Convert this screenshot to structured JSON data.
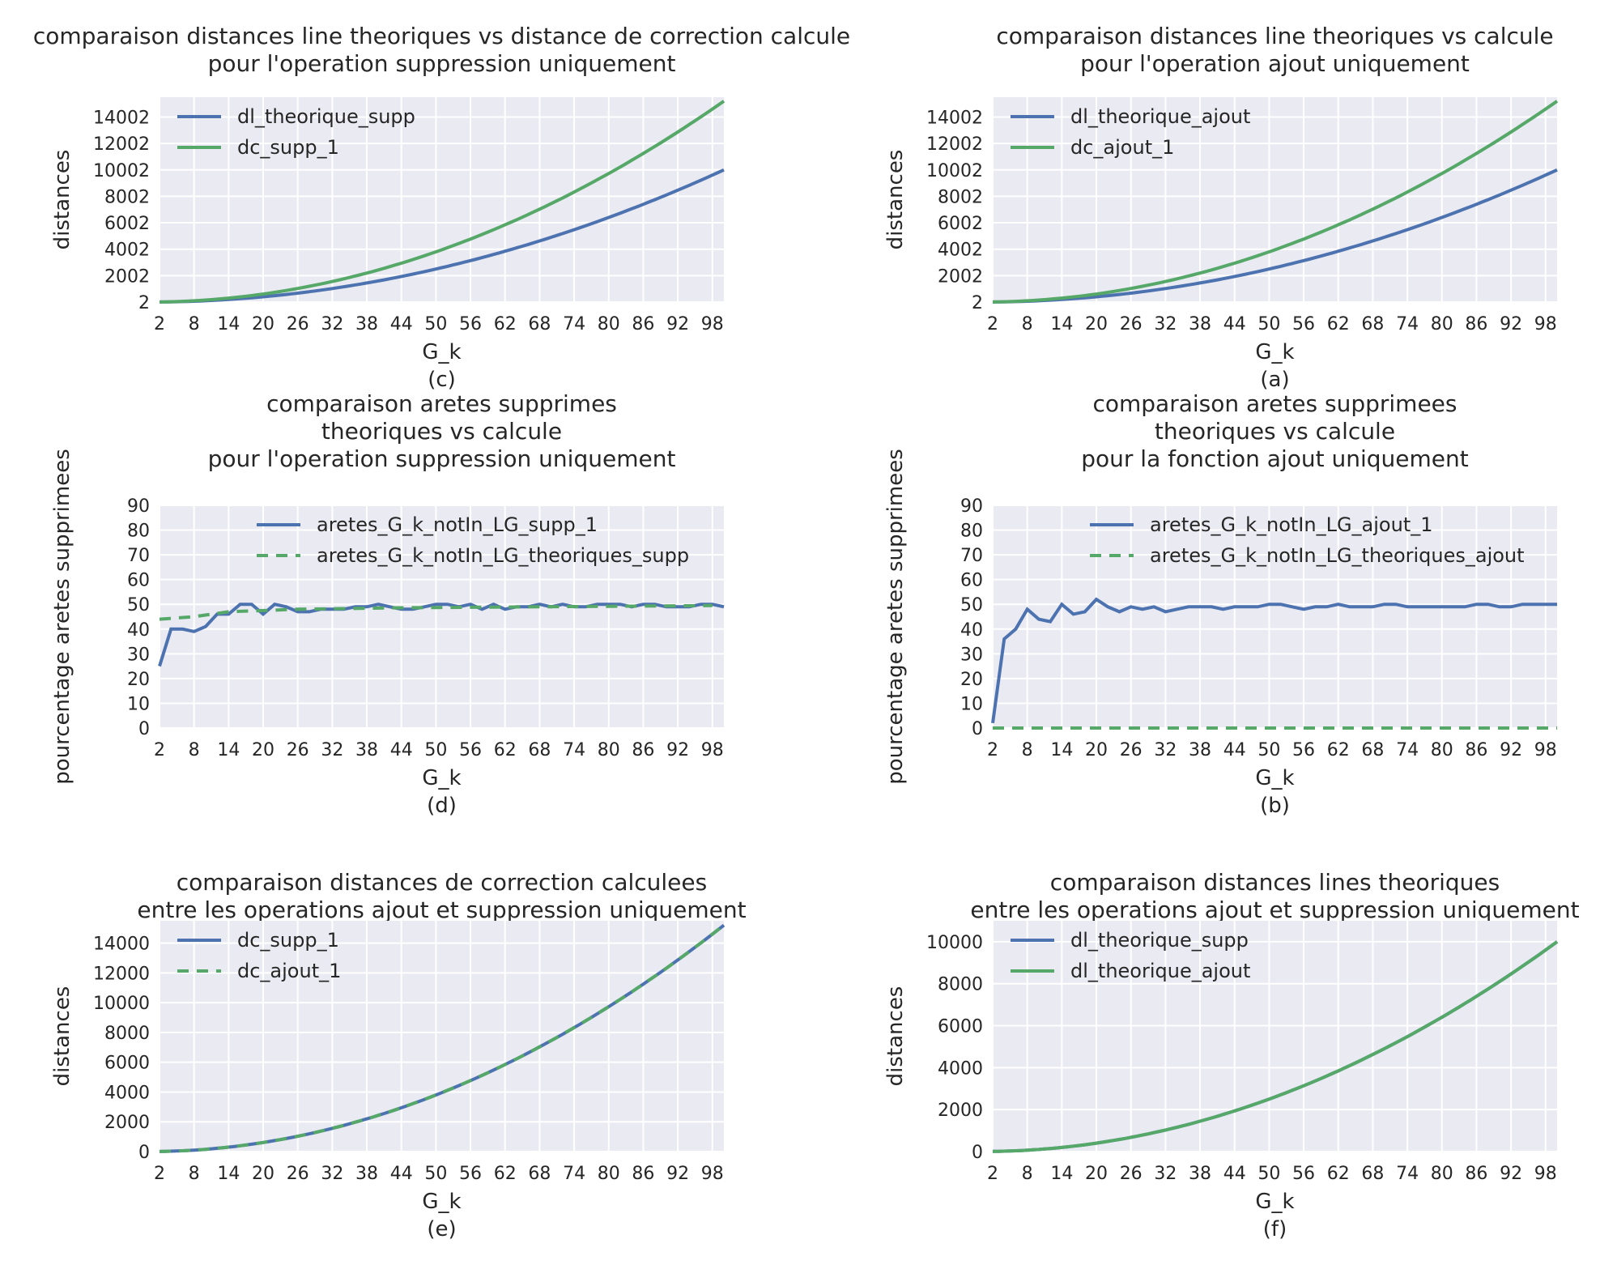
{
  "colors": {
    "blue": "#4c72b0",
    "green": "#55a868",
    "plot_bg": "#eaeaf2"
  },
  "xticks": [
    2,
    8,
    14,
    20,
    26,
    32,
    38,
    44,
    50,
    56,
    62,
    68,
    74,
    80,
    86,
    92,
    98
  ],
  "chart_data": [
    {
      "id": "c",
      "type": "line",
      "title": [
        "comparaison distances line theoriques vs distance de correction calcule",
        "pour l'operation suppression uniquement"
      ],
      "xlabel": "G_k",
      "ylabel": "distances",
      "caption": "(c)",
      "xlim": [
        2,
        100
      ],
      "ylim": [
        2,
        15500
      ],
      "yticks": [
        2,
        2002,
        4002,
        6002,
        8002,
        10002,
        12002,
        14002
      ],
      "legend_position": "upper-left",
      "series": [
        {
          "name": "dl_theorique_supp",
          "color": "blue",
          "dash": false,
          "formula": "quad",
          "scale": 1.0
        },
        {
          "name": "dc_supp_1",
          "color": "green",
          "dash": false,
          "formula": "quad",
          "scale": 1.52
        }
      ]
    },
    {
      "id": "a",
      "type": "line",
      "title": [
        "comparaison distances line theoriques vs calcule",
        "pour l'operation ajout uniquement"
      ],
      "xlabel": "G_k",
      "ylabel": "distances",
      "caption": "(a)",
      "xlim": [
        2,
        100
      ],
      "ylim": [
        2,
        15500
      ],
      "yticks": [
        2,
        2002,
        4002,
        6002,
        8002,
        10002,
        12002,
        14002
      ],
      "legend_position": "upper-left",
      "series": [
        {
          "name": "dl_theorique_ajout",
          "color": "blue",
          "dash": false,
          "formula": "quad",
          "scale": 1.0
        },
        {
          "name": "dc_ajout_1",
          "color": "green",
          "dash": false,
          "formula": "quad",
          "scale": 1.52
        }
      ]
    },
    {
      "id": "d",
      "type": "line",
      "title": [
        "comparaison aretes supprimes",
        "theoriques vs calcule",
        "pour l'operation suppression uniquement"
      ],
      "xlabel": "G_k",
      "ylabel": "pourcentage aretes supprimees",
      "caption": "(d)",
      "xlim": [
        2,
        100
      ],
      "ylim": [
        0,
        90
      ],
      "yticks": [
        0,
        10,
        20,
        30,
        40,
        50,
        60,
        70,
        80,
        90
      ],
      "legend_position": "upper-center",
      "series": [
        {
          "name": "aretes_G_k_notIn_LG_supp_1",
          "color": "blue",
          "dash": false,
          "x": [
            2,
            4,
            6,
            8,
            10,
            12,
            14,
            16,
            18,
            20,
            22,
            24,
            26,
            28,
            30,
            32,
            34,
            36,
            38,
            40,
            42,
            44,
            46,
            48,
            50,
            52,
            54,
            56,
            58,
            60,
            62,
            64,
            66,
            68,
            70,
            72,
            74,
            76,
            78,
            80,
            82,
            84,
            86,
            88,
            90,
            92,
            94,
            96,
            98,
            100
          ],
          "y": [
            25,
            40,
            40,
            39,
            41,
            46,
            46,
            50,
            50,
            46,
            50,
            49,
            47,
            47,
            48,
            48,
            48,
            49,
            49,
            50,
            49,
            48,
            48,
            49,
            50,
            50,
            49,
            50,
            48,
            50,
            48,
            49,
            49,
            50,
            49,
            50,
            49,
            49,
            50,
            50,
            50,
            49,
            50,
            50,
            49,
            49,
            49,
            50,
            50,
            49
          ]
        },
        {
          "name": "aretes_G_k_notIn_LG_theoriques_supp",
          "color": "green",
          "dash": true,
          "x": [
            2,
            8,
            14,
            20,
            26,
            32,
            38,
            44,
            50,
            56,
            62,
            68,
            74,
            80,
            86,
            92,
            98
          ],
          "y": [
            44,
            45,
            47,
            47.5,
            48,
            48.2,
            48.4,
            48.6,
            48.7,
            48.8,
            48.9,
            49,
            49.1,
            49.2,
            49.3,
            49.4,
            49.5
          ]
        }
      ]
    },
    {
      "id": "b",
      "type": "line",
      "title": [
        "comparaison aretes supprimees",
        "theoriques vs calcule",
        "pour la fonction ajout uniquement"
      ],
      "xlabel": "G_k",
      "ylabel": "pourcentage aretes supprimees",
      "caption": "(b)",
      "xlim": [
        2,
        100
      ],
      "ylim": [
        0,
        90
      ],
      "yticks": [
        0,
        10,
        20,
        30,
        40,
        50,
        60,
        70,
        80,
        90
      ],
      "legend_position": "upper-center",
      "series": [
        {
          "name": "aretes_G_k_notIn_LG_ajout_1",
          "color": "blue",
          "dash": false,
          "x": [
            2,
            4,
            6,
            8,
            10,
            12,
            14,
            16,
            18,
            20,
            22,
            24,
            26,
            28,
            30,
            32,
            34,
            36,
            38,
            40,
            42,
            44,
            46,
            48,
            50,
            52,
            54,
            56,
            58,
            60,
            62,
            64,
            66,
            68,
            70,
            72,
            74,
            76,
            78,
            80,
            82,
            84,
            86,
            88,
            90,
            92,
            94,
            96,
            98,
            100
          ],
          "y": [
            2,
            36,
            40,
            48,
            44,
            43,
            50,
            46,
            47,
            52,
            49,
            47,
            49,
            48,
            49,
            47,
            48,
            49,
            49,
            49,
            48,
            49,
            49,
            49,
            50,
            50,
            49,
            48,
            49,
            49,
            50,
            49,
            49,
            49,
            50,
            50,
            49,
            49,
            49,
            49,
            49,
            49,
            50,
            50,
            49,
            49,
            50,
            50,
            50,
            50
          ]
        },
        {
          "name": "aretes_G_k_notIn_LG_theoriques_ajout",
          "color": "green",
          "dash": true,
          "x": [
            2,
            100
          ],
          "y": [
            0,
            0
          ]
        }
      ]
    },
    {
      "id": "e",
      "type": "line",
      "title": [
        "comparaison distances de correction calculees",
        "entre les operations ajout et suppression uniquement"
      ],
      "xlabel": "G_k",
      "ylabel": "distances",
      "caption": "(e)",
      "xlim": [
        2,
        100
      ],
      "ylim": [
        0,
        15500
      ],
      "yticks": [
        0,
        2000,
        4000,
        6000,
        8000,
        10000,
        12000,
        14000
      ],
      "legend_position": "upper-left",
      "series": [
        {
          "name": "dc_supp_1",
          "color": "blue",
          "dash": false,
          "formula": "quad",
          "scale": 1.52
        },
        {
          "name": "dc_ajout_1",
          "color": "green",
          "dash": true,
          "formula": "quad",
          "scale": 1.52
        }
      ]
    },
    {
      "id": "f",
      "type": "line",
      "title": [
        "comparaison distances lines theoriques",
        "entre les operations ajout et suppression uniquement"
      ],
      "xlabel": "G_k",
      "ylabel": "distances",
      "caption": "(f)",
      "xlim": [
        2,
        100
      ],
      "ylim": [
        0,
        11000
      ],
      "yticks": [
        0,
        2000,
        4000,
        6000,
        8000,
        10000
      ],
      "legend_position": "upper-left",
      "series": [
        {
          "name": "dl_theorique_supp",
          "color": "blue",
          "dash": false,
          "formula": "quad",
          "scale": 1.0
        },
        {
          "name": "dl_theorique_ajout",
          "color": "green",
          "dash": false,
          "formula": "quad",
          "scale": 1.0
        }
      ]
    }
  ]
}
